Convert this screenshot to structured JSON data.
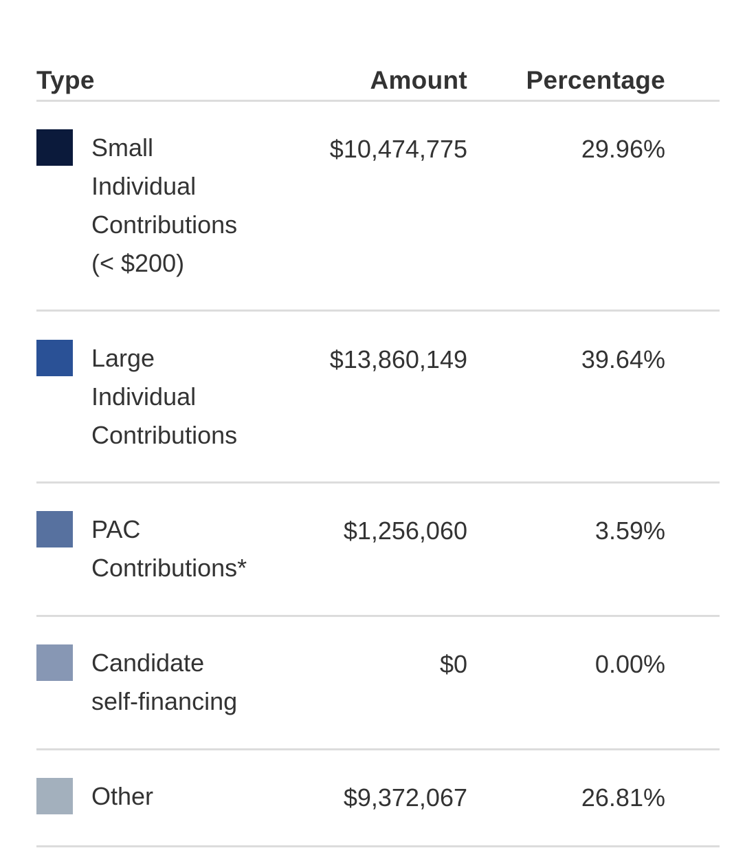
{
  "table": {
    "headers": {
      "type": "Type",
      "amount": "Amount",
      "percentage": "Percentage"
    },
    "rows": [
      {
        "type_lines": [
          "Small",
          "Individual",
          "Contributions",
          "(< $200)"
        ],
        "amount": "$10,474,775",
        "percentage": "29.96%",
        "color": "#0b1a3b"
      },
      {
        "type_lines": [
          "Large",
          "Individual",
          "Contributions"
        ],
        "amount": "$13,860,149",
        "percentage": "39.64%",
        "color": "#2a5196"
      },
      {
        "type_lines": [
          "PAC",
          "Contributions*"
        ],
        "amount": "$1,256,060",
        "percentage": "3.59%",
        "color": "#57719f"
      },
      {
        "type_lines": [
          "Candidate",
          "self-financing"
        ],
        "amount": "$0",
        "percentage": "0.00%",
        "color": "#8797b4"
      },
      {
        "type_lines": [
          "Other"
        ],
        "amount": "$9,372,067",
        "percentage": "26.81%",
        "color": "#a3b0bd"
      }
    ]
  }
}
